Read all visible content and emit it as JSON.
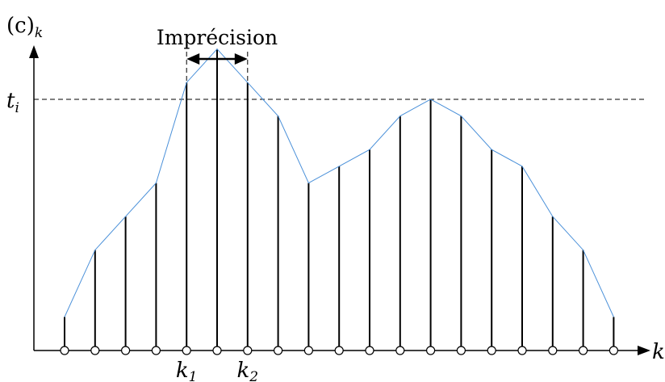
{
  "chart_data": {
    "type": "stem",
    "values": [
      1,
      3,
      4,
      5,
      8,
      9,
      8,
      7,
      5,
      5.5,
      6,
      7,
      7.5,
      7,
      6,
      5.5,
      4,
      3,
      1
    ],
    "threshold": 7.5,
    "ylim": [
      0,
      9.5
    ],
    "ylabel": "(c)",
    "ylabel_subscript": "k",
    "xlabel": "k",
    "threshold_label": "t",
    "threshold_subscript": "i",
    "imprecision_label": "Imprécision",
    "k1_index": 4,
    "k2_index": 6,
    "k1_label": "k",
    "k1_subscript": "1",
    "k2_label": "k",
    "k2_subscript": "2",
    "colors": {
      "stem": "#000000",
      "envelope": "#4a90d9",
      "axis": "#000000",
      "marker_fill": "#ffffff"
    }
  }
}
